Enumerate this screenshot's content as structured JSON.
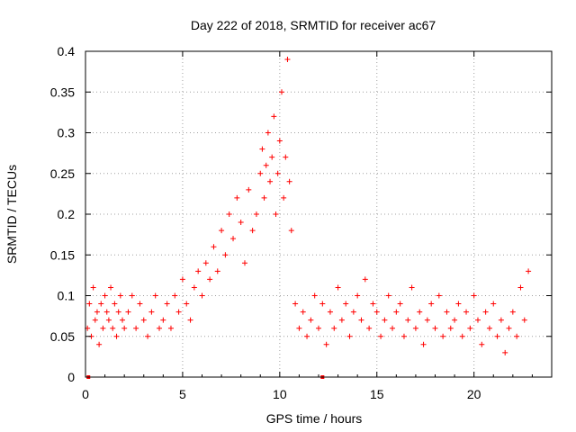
{
  "chart_data": {
    "type": "scatter",
    "title": "Day 222 of 2018, SRMTID for receiver ac67",
    "xlabel": "GPS time / hours",
    "ylabel": "SRMTID / TECUs",
    "xlim": [
      0,
      24
    ],
    "ylim": [
      0,
      0.4
    ],
    "xticks": [
      0,
      5,
      10,
      15,
      20
    ],
    "xtick_labels": [
      "0",
      "5",
      "10",
      "15",
      "20"
    ],
    "yticks": [
      0,
      0.05,
      0.1,
      0.15,
      0.2,
      0.25,
      0.3,
      0.35,
      0.4
    ],
    "ytick_labels": [
      "0",
      "0.05",
      "0.1",
      "0.15",
      "0.2",
      "0.25",
      "0.3",
      "0.35",
      "0.4"
    ],
    "grid": true,
    "marker": "+",
    "color": "#ff0000",
    "series": [
      {
        "name": "SRMTID",
        "x": [
          0.1,
          0.2,
          0.3,
          0.4,
          0.5,
          0.6,
          0.7,
          0.8,
          0.9,
          1.0,
          1.1,
          1.2,
          1.3,
          1.4,
          1.5,
          1.6,
          1.7,
          1.8,
          1.9,
          2.0,
          2.2,
          2.4,
          2.6,
          2.8,
          3.0,
          3.2,
          3.4,
          3.6,
          3.8,
          4.0,
          4.2,
          4.4,
          4.6,
          4.8,
          5.0,
          5.2,
          5.4,
          5.6,
          5.8,
          6.0,
          6.2,
          6.4,
          6.6,
          6.8,
          7.0,
          7.2,
          7.4,
          7.6,
          7.8,
          8.0,
          8.2,
          8.4,
          8.6,
          8.8,
          9.0,
          9.1,
          9.2,
          9.3,
          9.4,
          9.5,
          9.6,
          9.7,
          9.8,
          9.9,
          10.0,
          10.1,
          10.2,
          10.3,
          10.4,
          10.5,
          10.6,
          10.8,
          11.0,
          11.2,
          11.4,
          11.6,
          11.8,
          12.0,
          12.2,
          12.4,
          12.6,
          12.8,
          13.0,
          13.2,
          13.4,
          13.6,
          13.8,
          14.0,
          14.2,
          14.4,
          14.6,
          14.8,
          15.0,
          15.2,
          15.4,
          15.6,
          15.8,
          16.0,
          16.2,
          16.4,
          16.6,
          16.8,
          17.0,
          17.2,
          17.4,
          17.6,
          17.8,
          18.0,
          18.2,
          18.4,
          18.6,
          18.8,
          19.0,
          19.2,
          19.4,
          19.6,
          19.8,
          20.0,
          20.2,
          20.4,
          20.6,
          20.8,
          21.0,
          21.2,
          21.4,
          21.6,
          21.8,
          22.0,
          22.2,
          22.4,
          22.6,
          22.8
        ],
        "y": [
          0.06,
          0.09,
          0.05,
          0.11,
          0.07,
          0.08,
          0.04,
          0.09,
          0.06,
          0.1,
          0.08,
          0.07,
          0.11,
          0.06,
          0.09,
          0.05,
          0.08,
          0.1,
          0.07,
          0.06,
          0.08,
          0.1,
          0.06,
          0.09,
          0.07,
          0.05,
          0.08,
          0.1,
          0.06,
          0.07,
          0.09,
          0.06,
          0.1,
          0.08,
          0.12,
          0.09,
          0.07,
          0.11,
          0.13,
          0.1,
          0.14,
          0.12,
          0.16,
          0.13,
          0.18,
          0.15,
          0.2,
          0.17,
          0.22,
          0.19,
          0.14,
          0.23,
          0.18,
          0.2,
          0.25,
          0.28,
          0.22,
          0.26,
          0.3,
          0.24,
          0.27,
          0.32,
          0.2,
          0.25,
          0.29,
          0.35,
          0.22,
          0.27,
          0.39,
          0.24,
          0.18,
          0.09,
          0.06,
          0.08,
          0.05,
          0.07,
          0.1,
          0.06,
          0.09,
          0.04,
          0.08,
          0.06,
          0.11,
          0.07,
          0.09,
          0.05,
          0.08,
          0.1,
          0.07,
          0.12,
          0.06,
          0.09,
          0.08,
          0.05,
          0.07,
          0.1,
          0.06,
          0.08,
          0.09,
          0.05,
          0.07,
          0.11,
          0.06,
          0.08,
          0.04,
          0.07,
          0.09,
          0.06,
          0.1,
          0.05,
          0.08,
          0.06,
          0.07,
          0.09,
          0.05,
          0.08,
          0.06,
          0.1,
          0.07,
          0.04,
          0.08,
          0.06,
          0.09,
          0.05,
          0.07,
          0.03,
          0.06,
          0.08,
          0.05,
          0.11,
          0.07,
          0.13
        ]
      },
      {
        "name": "gap markers",
        "x": [
          0.15,
          12.2
        ],
        "y": [
          0,
          0
        ]
      }
    ]
  }
}
